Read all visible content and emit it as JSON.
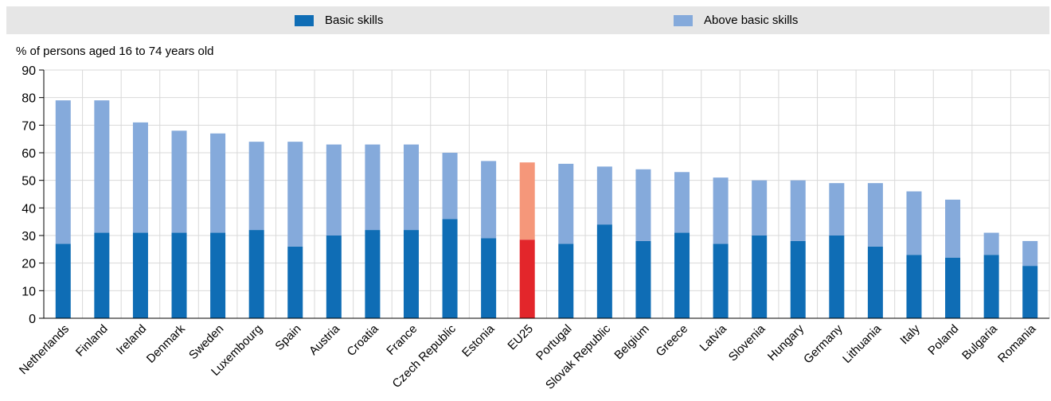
{
  "chart_data": {
    "type": "bar",
    "stacked": true,
    "title": "",
    "ylabel": "% of persons aged 16 to 74 years old",
    "xlabel": "",
    "ylim": [
      0,
      90
    ],
    "yticks": [
      0,
      10,
      20,
      30,
      40,
      50,
      60,
      70,
      80,
      90
    ],
    "grid": true,
    "legend": "top",
    "categories": [
      "Netherlands",
      "Finland",
      "Ireland",
      "Denmark",
      "Sweden",
      "Luxembourg",
      "Spain",
      "Austria",
      "Croatia",
      "France",
      "Czech Republic",
      "Estonia",
      "EU25",
      "Portugal",
      "Slovak Republic",
      "Belgium",
      "Greece",
      "Latvia",
      "Slovenia",
      "Hungary",
      "Germany",
      "Lithuania",
      "Italy",
      "Poland",
      "Bulgaria",
      "Romania"
    ],
    "highlight_category": "EU25",
    "series": [
      {
        "name": "Basic skills",
        "color": "#0f6db5",
        "highlight_color": "#e3262b",
        "values": [
          27,
          31,
          31,
          31,
          31,
          32,
          26,
          30,
          32,
          32,
          36,
          29,
          28.5,
          27,
          34,
          28,
          31,
          27,
          30,
          28,
          30,
          26,
          23,
          22,
          23,
          19
        ]
      },
      {
        "name": "Above basic skills",
        "color": "#85aadb",
        "highlight_color": "#f5977a",
        "values": [
          52,
          48,
          40,
          37,
          36,
          32,
          38,
          33,
          31,
          31,
          24,
          28,
          28,
          29,
          21,
          26,
          22,
          24,
          20,
          22,
          19,
          23,
          23,
          21,
          8,
          9
        ]
      }
    ]
  }
}
